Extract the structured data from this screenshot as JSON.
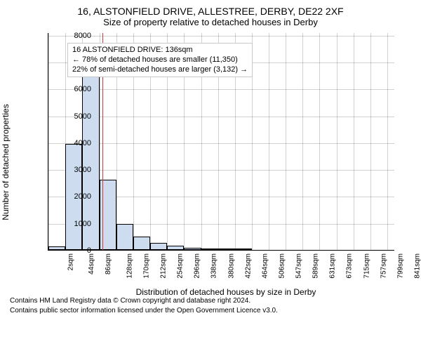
{
  "title_main": "16, ALSTONFIELD DRIVE, ALLESTREE, DERBY, DE22 2XF",
  "title_sub": "Size of property relative to detached houses in Derby",
  "ylabel": "Number of detached properties",
  "xlabel": "Distribution of detached houses by size in Derby",
  "annot": {
    "line1": "16 ALSTONFIELD DRIVE: 136sqm",
    "line2": "← 78% of detached houses are smaller (11,350)",
    "line3": "22% of semi-detached houses are larger (3,132) →"
  },
  "attribution": {
    "line1": "Contains HM Land Registry data © Crown copyright and database right 2024.",
    "line2": "Contains public sector information licensed under the Open Government Licence v3.0."
  },
  "chart": {
    "type": "histogram",
    "bar_color": "#cdddef",
    "bar_border": "#000000",
    "grid_color": "#000000",
    "grid_opacity": 0.18,
    "ref_line_color": "#cc3a3a",
    "ref_line_value": 136,
    "x_min": 2,
    "x_max": 860,
    "bin_width": 42,
    "ylim": [
      0,
      8100
    ],
    "ytick_step": 1000,
    "xticks": [
      2,
      44,
      86,
      128,
      170,
      212,
      254,
      296,
      338,
      380,
      422,
      464,
      506,
      547,
      589,
      631,
      673,
      715,
      757,
      799,
      841
    ],
    "xtick_suffix": "sqm",
    "values": [
      140,
      3950,
      6800,
      2620,
      970,
      500,
      250,
      150,
      80,
      60,
      30,
      15,
      10,
      10,
      5,
      5,
      0,
      5,
      0,
      0
    ],
    "title_fontsize": 14,
    "label_fontsize": 12,
    "tick_fontsize": 11
  }
}
